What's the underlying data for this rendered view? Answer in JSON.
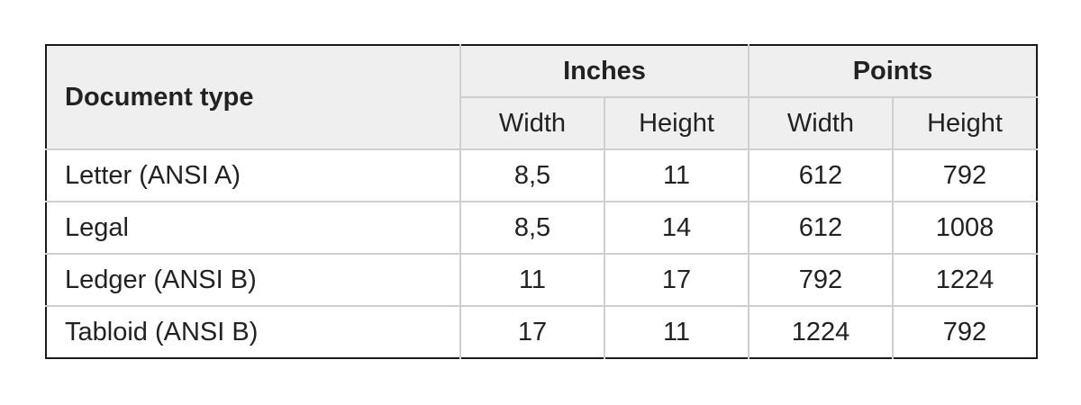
{
  "table": {
    "header": {
      "document_type": "Document type",
      "groups": [
        {
          "label": "Inches",
          "sub": [
            "Width",
            "Height"
          ]
        },
        {
          "label": "Points",
          "sub": [
            "Width",
            "Height"
          ]
        }
      ]
    },
    "rows": [
      {
        "type": "Letter (ANSI A)",
        "in_w": "8,5",
        "in_h": "11",
        "pt_w": "612",
        "pt_h": "792"
      },
      {
        "type": "Legal",
        "in_w": "8,5",
        "in_h": "14",
        "pt_w": "612",
        "pt_h": "1008"
      },
      {
        "type": "Ledger (ANSI B)",
        "in_w": "11",
        "in_h": "17",
        "pt_w": "792",
        "pt_h": "1224"
      },
      {
        "type": "Tabloid (ANSI B)",
        "in_w": "17",
        "in_h": "11",
        "pt_w": "1224",
        "pt_h": "792"
      }
    ]
  }
}
